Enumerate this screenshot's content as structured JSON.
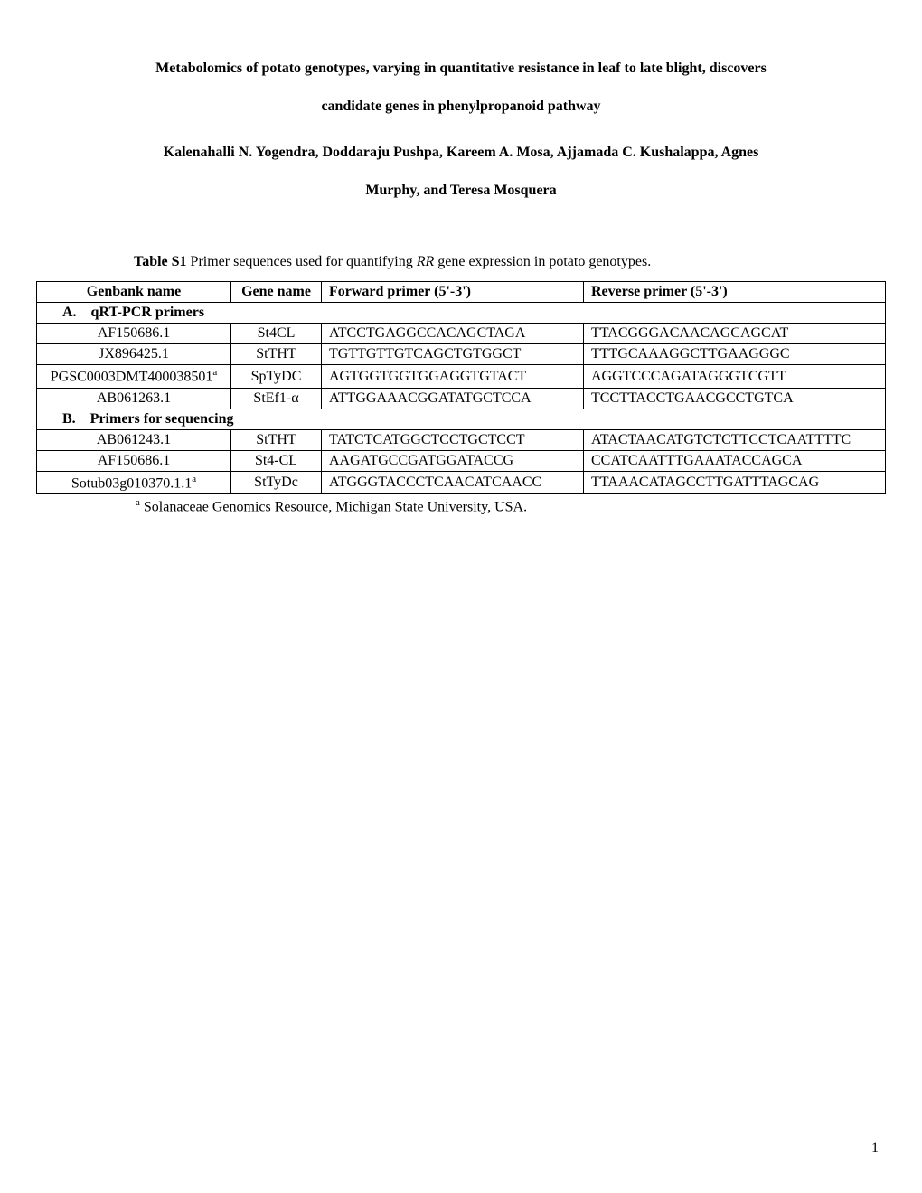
{
  "title_line1": "Metabolomics of potato genotypes, varying in quantitative resistance in leaf to late blight, discovers",
  "title_line2": "candidate genes in phenylpropanoid pathway",
  "authors_line1": "Kalenahalli N. Yogendra, Doddaraju Pushpa, Kareem A. Mosa, Ajjamada C. Kushalappa, Agnes",
  "authors_line2": "Murphy, and Teresa Mosquera",
  "caption_label": "Table S1",
  "caption_text_pre": " Primer sequences used for quantifying ",
  "caption_italic": "RR",
  "caption_text_post": " gene expression in potato genotypes.",
  "headers": {
    "genbank": "Genbank name",
    "gene": "Gene name",
    "forward": "Forward primer (5'-3')",
    "reverse": "Reverse primer (5'-3')"
  },
  "sectionA": "A. qRT-PCR primers",
  "sectionB": "B. Primers for sequencing",
  "rowsA": [
    {
      "genbank": "AF150686.1",
      "sup": "",
      "gene": "St4CL",
      "fwd": "ATCCTGAGGCCACAGCTAGA",
      "rev": "TTACGGGACAACAGCAGCAT"
    },
    {
      "genbank": "JX896425.1",
      "sup": "",
      "gene": "StTHT",
      "fwd": "TGTTGTTGTCAGCTGTGGCT",
      "rev": "TTTGCAAAGGCTTGAAGGGC"
    },
    {
      "genbank": "PGSC0003DMT400038501",
      "sup": "a",
      "gene": "SpTyDC",
      "fwd": "AGTGGTGGTGGAGGTGTACT",
      "rev": "AGGTCCCAGATAGGGTCGTT"
    },
    {
      "genbank": "AB061263.1",
      "sup": "",
      "gene": "StEf1-α",
      "fwd": "ATTGGAAACGGATATGCTCCA",
      "rev": "TCCTTACCTGAACGCCTGTCA"
    }
  ],
  "rowsB": [
    {
      "genbank": "AB061243.1",
      "sup": "",
      "gene": "StTHT",
      "fwd": "TATCTCATGGCTCCTGCTCCT",
      "rev": "ATACTAACATGTCTCTTCCTCAATTTTC"
    },
    {
      "genbank": "AF150686.1",
      "sup": "",
      "gene": "St4-CL",
      "fwd": "AAGATGCCGATGGATACCG",
      "rev": "CCATCAATTTGAAATACCAGCA"
    },
    {
      "genbank": "Sotub03g010370.1.1",
      "sup": "a",
      "gene": "StTyDc",
      "fwd": "ATGGGTACCCTCAACATCAACC",
      "rev": "TTAAACATAGCCTTGATTTAGCAG"
    }
  ],
  "footnote_sup": "a",
  "footnote_text": " Solanaceae Genomics Resource, Michigan State University, USA.",
  "page_number": "1"
}
